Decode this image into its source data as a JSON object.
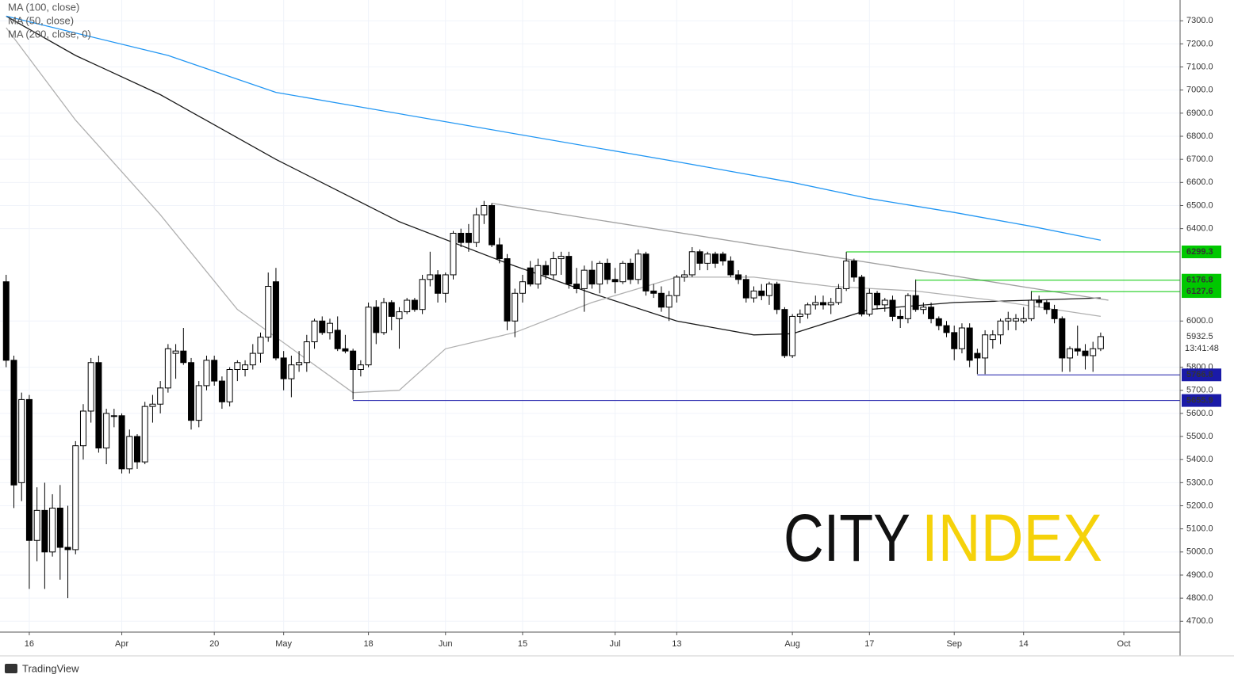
{
  "legend": [
    "MA (100, close)",
    "MA (50, close)",
    "MA (200, close, 0)"
  ],
  "watermark": {
    "left": "CITY",
    "right": "INDEX"
  },
  "countdown": "13:41:48",
  "footer": "TradingView",
  "chart_data": {
    "type": "candlestick",
    "xlim": [
      -0.8,
      152.3
    ],
    "ylim": [
      4653,
      7390
    ],
    "xticks": [
      {
        "value": 3,
        "label": "16"
      },
      {
        "value": 15,
        "label": "Apr"
      },
      {
        "value": 27,
        "label": "20"
      },
      {
        "value": 36,
        "label": "May"
      },
      {
        "value": 47,
        "label": "18"
      },
      {
        "value": 57,
        "label": "Jun"
      },
      {
        "value": 67,
        "label": "15"
      },
      {
        "value": 79,
        "label": "Jul"
      },
      {
        "value": 87,
        "label": "13"
      },
      {
        "value": 102,
        "label": "Aug"
      },
      {
        "value": 112,
        "label": "17"
      },
      {
        "value": 123,
        "label": "Sep"
      },
      {
        "value": 132,
        "label": "14"
      },
      {
        "value": 145,
        "label": "Oct"
      }
    ],
    "yticks": [
      {
        "value": 4700,
        "label": "4700.0"
      },
      {
        "value": 4800,
        "label": "4800.0"
      },
      {
        "value": 4900,
        "label": "4900.0"
      },
      {
        "value": 5000,
        "label": "5000.0"
      },
      {
        "value": 5100,
        "label": "5100.0"
      },
      {
        "value": 5200,
        "label": "5200.0"
      },
      {
        "value": 5300,
        "label": "5300.0"
      },
      {
        "value": 5400,
        "label": "5400.0"
      },
      {
        "value": 5500,
        "label": "5500.0"
      },
      {
        "value": 5600,
        "label": "5600.0"
      },
      {
        "value": 5700,
        "label": "5700.0"
      },
      {
        "value": 5800,
        "label": "5800.0"
      },
      {
        "value": 6000,
        "label": "6000.0"
      },
      {
        "value": 6400,
        "label": "6400.0"
      },
      {
        "value": 6500,
        "label": "6500.0"
      },
      {
        "value": 6600,
        "label": "6600.0"
      },
      {
        "value": 6700,
        "label": "6700.0"
      },
      {
        "value": 6800,
        "label": "6800.0"
      },
      {
        "value": 6900,
        "label": "6900.0"
      },
      {
        "value": 7000,
        "label": "7000.0"
      },
      {
        "value": 7100,
        "label": "7100.0"
      },
      {
        "value": 7200,
        "label": "7200.0"
      },
      {
        "value": 7300,
        "label": "7300.0"
      }
    ],
    "grid": true,
    "up_color": "#ffffff",
    "down_color": "#000000",
    "ohlc": [
      [
        6170,
        6200,
        5800,
        5830
      ],
      [
        5830,
        5850,
        5190,
        5290
      ],
      [
        5300,
        5690,
        5220,
        5660
      ],
      [
        5660,
        5680,
        4840,
        5050
      ],
      [
        5050,
        5280,
        4960,
        5180
      ],
      [
        5180,
        5300,
        4840,
        5000
      ],
      [
        5000,
        5250,
        4980,
        5190
      ],
      [
        5190,
        5290,
        4880,
        5020
      ],
      [
        5020,
        5200,
        4800,
        5010
      ],
      [
        5010,
        5480,
        4990,
        5460
      ],
      [
        5460,
        5640,
        5400,
        5610
      ],
      [
        5610,
        5840,
        5560,
        5820
      ],
      [
        5820,
        5850,
        5430,
        5450
      ],
      [
        5450,
        5620,
        5380,
        5600
      ],
      [
        5590,
        5620,
        5540,
        5590
      ],
      [
        5590,
        5600,
        5340,
        5360
      ],
      [
        5360,
        5530,
        5340,
        5500
      ],
      [
        5500,
        5510,
        5360,
        5390
      ],
      [
        5390,
        5650,
        5380,
        5630
      ],
      [
        5630,
        5680,
        5560,
        5640
      ],
      [
        5640,
        5740,
        5600,
        5710
      ],
      [
        5710,
        5900,
        5690,
        5880
      ],
      [
        5860,
        5900,
        5750,
        5870
      ],
      [
        5870,
        5970,
        5810,
        5820
      ],
      [
        5820,
        5840,
        5530,
        5570
      ],
      [
        5570,
        5740,
        5540,
        5720
      ],
      [
        5720,
        5850,
        5700,
        5830
      ],
      [
        5830,
        5850,
        5720,
        5740
      ],
      [
        5740,
        5760,
        5620,
        5650
      ],
      [
        5650,
        5800,
        5630,
        5790
      ],
      [
        5790,
        5830,
        5740,
        5820
      ],
      [
        5790,
        5830,
        5760,
        5810
      ],
      [
        5810,
        5900,
        5790,
        5860
      ],
      [
        5860,
        5950,
        5820,
        5930
      ],
      [
        5930,
        6210,
        5910,
        6150
      ],
      [
        6170,
        6230,
        5830,
        5840
      ],
      [
        5840,
        5870,
        5700,
        5750
      ],
      [
        5750,
        5850,
        5670,
        5810
      ],
      [
        5810,
        5870,
        5780,
        5820
      ],
      [
        5820,
        5940,
        5780,
        5910
      ],
      [
        5910,
        6010,
        5880,
        6000
      ],
      [
        6000,
        6020,
        5940,
        5950
      ],
      [
        5950,
        6010,
        5920,
        5990
      ],
      [
        5960,
        6020,
        5870,
        5880
      ],
      [
        5880,
        5940,
        5860,
        5870
      ],
      [
        5870,
        5880,
        5660,
        5790
      ],
      [
        5790,
        5830,
        5760,
        5810
      ],
      [
        5810,
        6080,
        5800,
        6060
      ],
      [
        6060,
        6090,
        5900,
        5950
      ],
      [
        5950,
        6100,
        5940,
        6080
      ],
      [
        6080,
        6090,
        5960,
        6020
      ],
      [
        6010,
        6060,
        5880,
        6040
      ],
      [
        6040,
        6100,
        6030,
        6090
      ],
      [
        6090,
        6100,
        6040,
        6050
      ],
      [
        6050,
        6200,
        6030,
        6180
      ],
      [
        6180,
        6300,
        6150,
        6200
      ],
      [
        6200,
        6220,
        6080,
        6120
      ],
      [
        6120,
        6210,
        6080,
        6200
      ],
      [
        6200,
        6390,
        6180,
        6380
      ],
      [
        6380,
        6400,
        6320,
        6340
      ],
      [
        6380,
        6420,
        6300,
        6340
      ],
      [
        6340,
        6490,
        6320,
        6460
      ],
      [
        6460,
        6520,
        6420,
        6500
      ],
      [
        6500,
        6510,
        6320,
        6330
      ],
      [
        6330,
        6360,
        6250,
        6270
      ],
      [
        6270,
        6290,
        5960,
        6000
      ],
      [
        6000,
        6140,
        5930,
        6120
      ],
      [
        6120,
        6200,
        6080,
        6170
      ],
      [
        6230,
        6260,
        6150,
        6160
      ],
      [
        6160,
        6270,
        6140,
        6240
      ],
      [
        6240,
        6260,
        6180,
        6200
      ],
      [
        6200,
        6300,
        6180,
        6270
      ],
      [
        6270,
        6300,
        6200,
        6280
      ],
      [
        6280,
        6300,
        6140,
        6160
      ],
      [
        6160,
        6230,
        6120,
        6140
      ],
      [
        6140,
        6240,
        6040,
        6220
      ],
      [
        6220,
        6260,
        6140,
        6160
      ],
      [
        6160,
        6260,
        6120,
        6250
      ],
      [
        6250,
        6270,
        6160,
        6180
      ],
      [
        6180,
        6230,
        6120,
        6170
      ],
      [
        6170,
        6260,
        6160,
        6250
      ],
      [
        6250,
        6270,
        6160,
        6180
      ],
      [
        6180,
        6310,
        6160,
        6290
      ],
      [
        6290,
        6300,
        6110,
        6130
      ],
      [
        6130,
        6160,
        6100,
        6120
      ],
      [
        6120,
        6150,
        6040,
        6060
      ],
      [
        6060,
        6130,
        6000,
        6110
      ],
      [
        6110,
        6200,
        6080,
        6190
      ],
      [
        6190,
        6220,
        6170,
        6200
      ],
      [
        6200,
        6320,
        6190,
        6300
      ],
      [
        6300,
        6310,
        6220,
        6250
      ],
      [
        6250,
        6300,
        6220,
        6290
      ],
      [
        6290,
        6300,
        6230,
        6250
      ],
      [
        6290,
        6300,
        6240,
        6260
      ],
      [
        6260,
        6280,
        6190,
        6200
      ],
      [
        6200,
        6220,
        6160,
        6180
      ],
      [
        6180,
        6200,
        6080,
        6100
      ],
      [
        6100,
        6150,
        6080,
        6130
      ],
      [
        6130,
        6160,
        6090,
        6110
      ],
      [
        6110,
        6170,
        6070,
        6160
      ],
      [
        6160,
        6170,
        6030,
        6050
      ],
      [
        6050,
        6060,
        5840,
        5850
      ],
      [
        5850,
        6030,
        5840,
        6020
      ],
      [
        6020,
        6050,
        5990,
        6030
      ],
      [
        6030,
        6080,
        6010,
        6070
      ],
      [
        6070,
        6110,
        6050,
        6080
      ],
      [
        6080,
        6110,
        6050,
        6070
      ],
      [
        6070,
        6100,
        6030,
        6080
      ],
      [
        6080,
        6160,
        6070,
        6140
      ],
      [
        6140,
        6300,
        6130,
        6260
      ],
      [
        6260,
        6270,
        6170,
        6190
      ],
      [
        6190,
        6200,
        6020,
        6030
      ],
      [
        6030,
        6140,
        6020,
        6120
      ],
      [
        6120,
        6130,
        6050,
        6070
      ],
      [
        6070,
        6100,
        6040,
        6090
      ],
      [
        6090,
        6110,
        6000,
        6020
      ],
      [
        6020,
        6050,
        5970,
        6010
      ],
      [
        6010,
        6120,
        5990,
        6110
      ],
      [
        6110,
        6180,
        6040,
        6050
      ],
      [
        6050,
        6080,
        6030,
        6060
      ],
      [
        6060,
        6080,
        5990,
        6010
      ],
      [
        6010,
        6020,
        5960,
        5980
      ],
      [
        5980,
        6000,
        5930,
        5950
      ],
      [
        5950,
        5980,
        5830,
        5880
      ],
      [
        5880,
        5990,
        5860,
        5970
      ],
      [
        5970,
        5990,
        5800,
        5830
      ],
      [
        5860,
        5880,
        5770,
        5840
      ],
      [
        5840,
        5960,
        5770,
        5940
      ],
      [
        5920,
        5960,
        5880,
        5940
      ],
      [
        5940,
        6010,
        5900,
        6000
      ],
      [
        6000,
        6040,
        5960,
        6010
      ],
      [
        6000,
        6030,
        5960,
        6010
      ],
      [
        6000,
        6060,
        5990,
        6010
      ],
      [
        6010,
        6130,
        6000,
        6090
      ],
      [
        6090,
        6110,
        6060,
        6080
      ],
      [
        6080,
        6090,
        6030,
        6050
      ],
      [
        6050,
        6070,
        5990,
        6010
      ],
      [
        6010,
        6020,
        5780,
        5840
      ],
      [
        5840,
        5890,
        5780,
        5880
      ],
      [
        5880,
        5980,
        5850,
        5870
      ],
      [
        5870,
        5900,
        5790,
        5850
      ],
      [
        5850,
        5910,
        5780,
        5880
      ],
      [
        5880,
        5950,
        5870,
        5932.5
      ]
    ],
    "series": [
      {
        "name": "MA (100, close)",
        "color": "#1a1a1a",
        "x": [
          0,
          9,
          20,
          35,
          51,
          65,
          76,
          87,
          97,
          102,
          112,
          123,
          133,
          142
        ],
        "values": [
          7320,
          7150,
          6980,
          6700,
          6430,
          6250,
          6120,
          6000,
          5940,
          5945,
          6050,
          6080,
          6090,
          6100
        ]
      },
      {
        "name": "MA (50, close)",
        "color": "#b0b0b0",
        "x": [
          0,
          9,
          20,
          30,
          40,
          45,
          51,
          57,
          66,
          76,
          87,
          97,
          107,
          118,
          128,
          142
        ],
        "values": [
          7270,
          6870,
          6460,
          6050,
          5810,
          5690,
          5700,
          5880,
          5950,
          6080,
          6190,
          6190,
          6150,
          6130,
          6090,
          6020
        ]
      },
      {
        "name": "MA (200, close, 0)",
        "color": "#2196f3",
        "x": [
          0,
          21,
          35,
          61,
          87,
          102,
          112,
          123,
          133,
          142
        ],
        "values": [
          7320,
          7150,
          6990,
          6840,
          6690,
          6600,
          6530,
          6470,
          6410,
          6350
        ]
      }
    ],
    "trendline": {
      "color": "#a0a0a0",
      "x": [
        63,
        143
      ],
      "values": [
        6510,
        6090
      ]
    },
    "levels": [
      {
        "value": 6299.3,
        "start": 109,
        "color": "#00c800"
      },
      {
        "value": 6176.8,
        "start": 118,
        "color": "#00c800"
      },
      {
        "value": 6127.6,
        "start": 133,
        "color": "#00c800"
      },
      {
        "value": 5766.8,
        "start": 126,
        "color": "#1a1aa8"
      },
      {
        "value": 5655.9,
        "start": 45,
        "color": "#1a1aa8"
      }
    ]
  }
}
